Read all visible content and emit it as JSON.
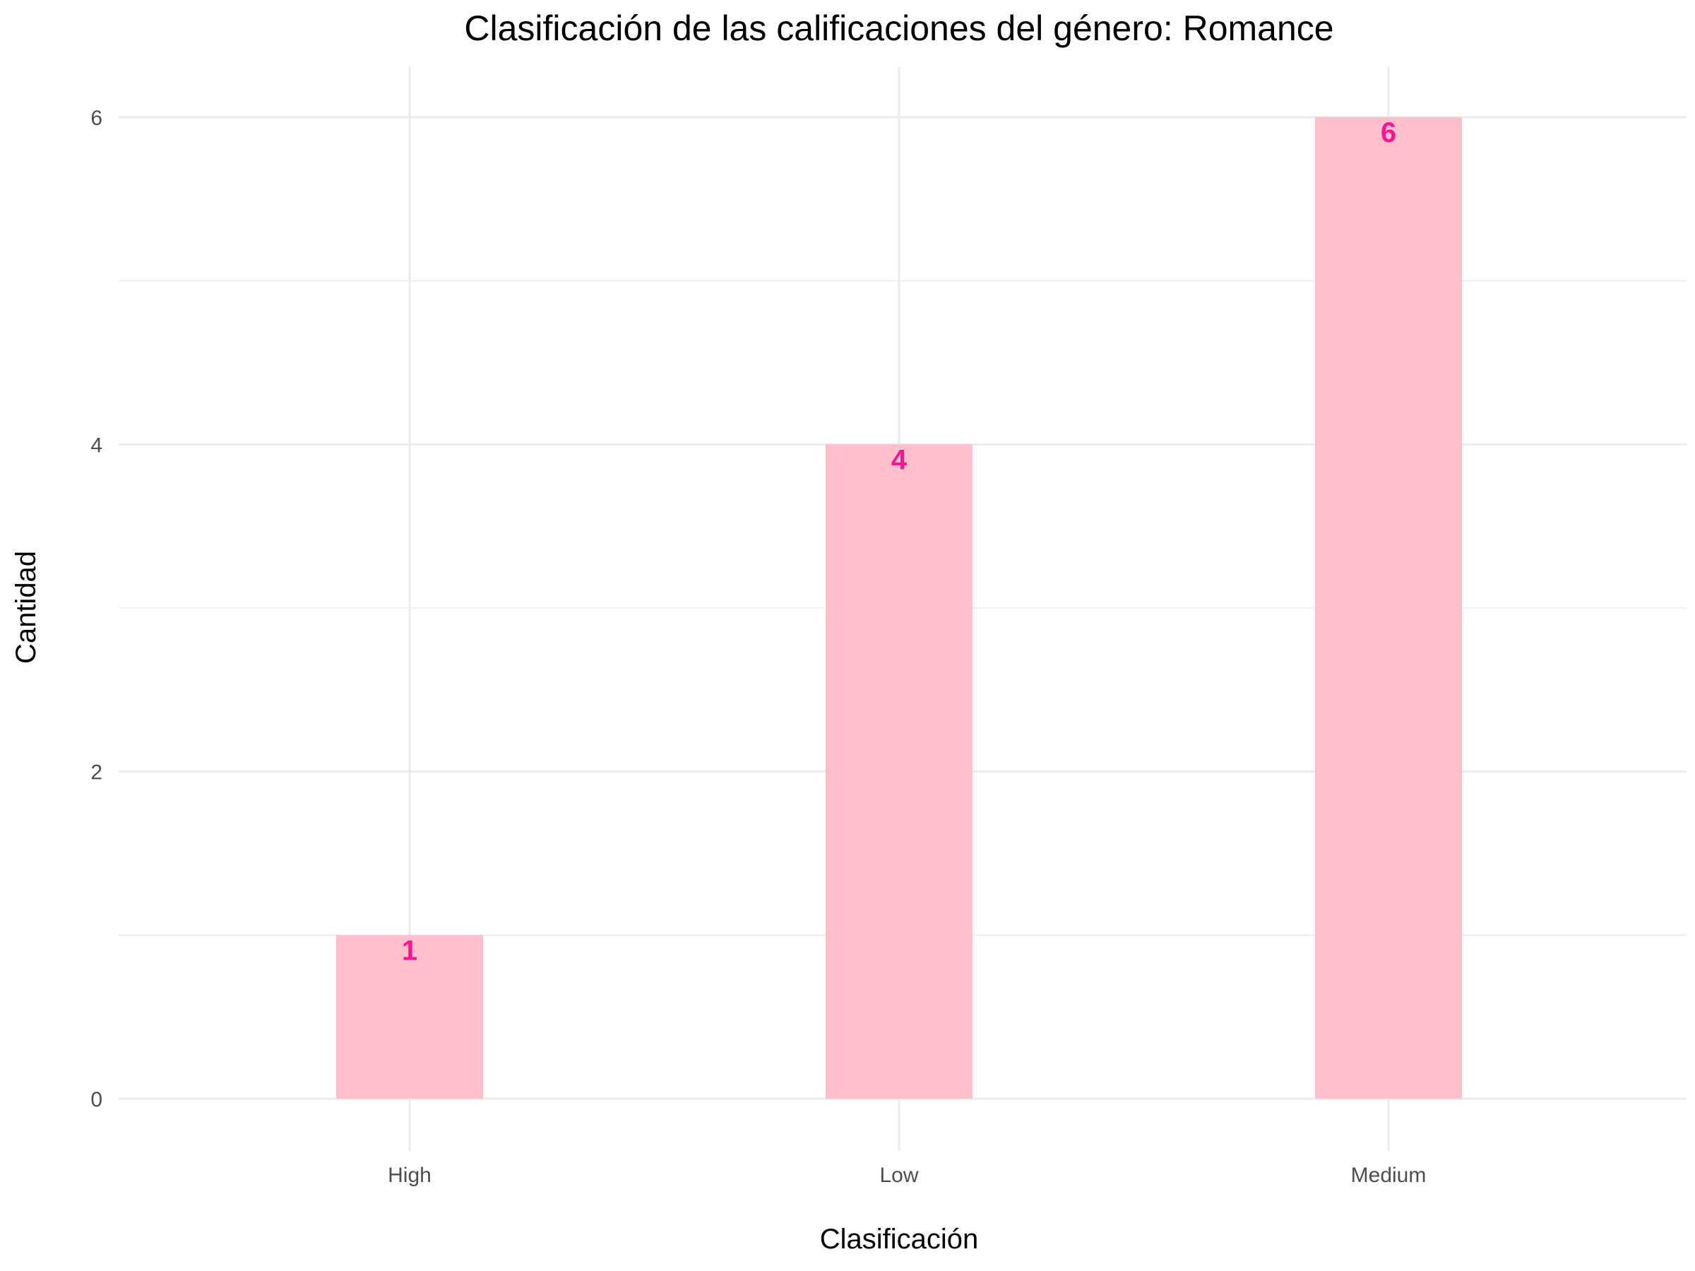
{
  "chart_data": {
    "type": "bar",
    "title": "Clasificación de las calificaciones del género: Romance",
    "xlabel": "Clasificación",
    "ylabel": "Cantidad",
    "categories": [
      "High",
      "Low",
      "Medium"
    ],
    "values": [
      1,
      4,
      6
    ],
    "data_labels": [
      "1",
      "4",
      "6"
    ],
    "yticks": [
      0,
      2,
      4,
      6
    ],
    "ytick_labels": [
      "0",
      "2",
      "4",
      "6"
    ],
    "ylim": [
      0,
      6.3
    ],
    "grid": true,
    "legend": "none",
    "colors": {
      "bar_fill": "#ffc0cb",
      "data_label": "#ff1493",
      "grid": "#ebebeb"
    }
  }
}
